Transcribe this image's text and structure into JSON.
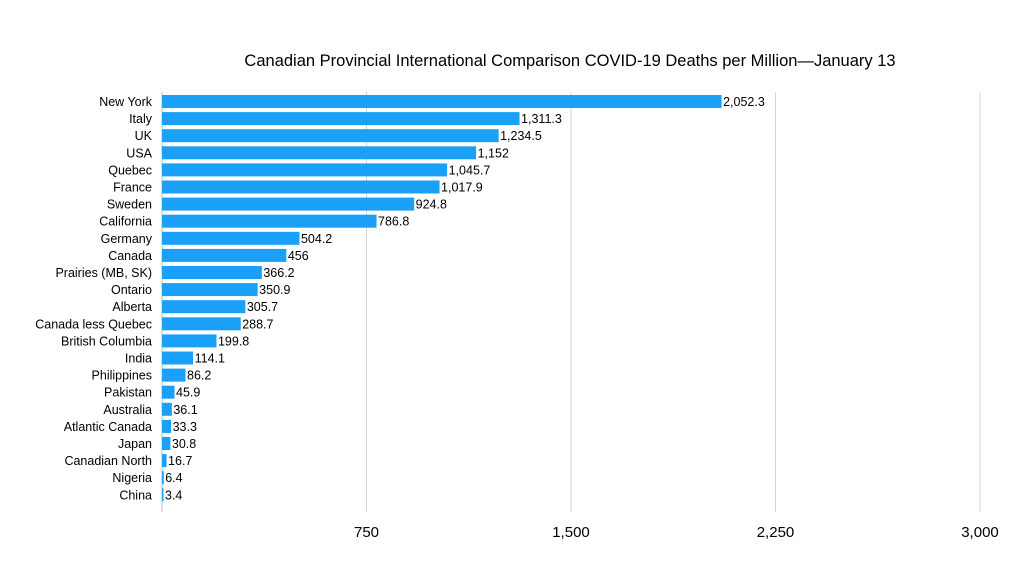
{
  "chart_data": {
    "type": "bar",
    "orientation": "horizontal",
    "title": "Canadian Provincial International Comparison COVID-19 Deaths per Million—January 13",
    "xlabel": "",
    "ylabel": "",
    "xlim": [
      0,
      3000
    ],
    "xticks": [
      750,
      1500,
      2250,
      3000
    ],
    "xtick_labels": [
      "750",
      "1,500",
      "2,250",
      "3,000"
    ],
    "grid": "vertical",
    "legend": "none",
    "bar_color": "#1aa0f7",
    "categories": [
      "New York",
      "Italy",
      "UK",
      "USA",
      "Quebec",
      "France",
      "Sweden",
      "California",
      "Germany",
      "Canada",
      "Prairies (MB, SK)",
      "Ontario",
      "Alberta",
      "Canada less Quebec",
      "British Columbia",
      "India",
      "Philippines",
      "Pakistan",
      "Australia",
      "Atlantic Canada",
      "Japan",
      "Canadian North",
      "Nigeria",
      "China"
    ],
    "values": [
      2052.3,
      1311.3,
      1234.5,
      1152,
      1045.7,
      1017.9,
      924.8,
      786.8,
      504.2,
      456,
      366.2,
      350.9,
      305.7,
      288.7,
      199.8,
      114.1,
      86.2,
      45.9,
      36.1,
      33.3,
      30.8,
      16.7,
      6.4,
      3.4
    ],
    "value_labels": [
      "2,052.3",
      "1,311.3",
      "1,234.5",
      "1,152",
      "1,045.7",
      "1,017.9",
      "924.8",
      "786.8",
      "504.2",
      "456",
      "366.2",
      "350.9",
      "305.7",
      "288.7",
      "199.8",
      "114.1",
      "86.2",
      "45.9",
      "36.1",
      "33.3",
      "30.8",
      "16.7",
      "6.4",
      "3.4"
    ]
  }
}
